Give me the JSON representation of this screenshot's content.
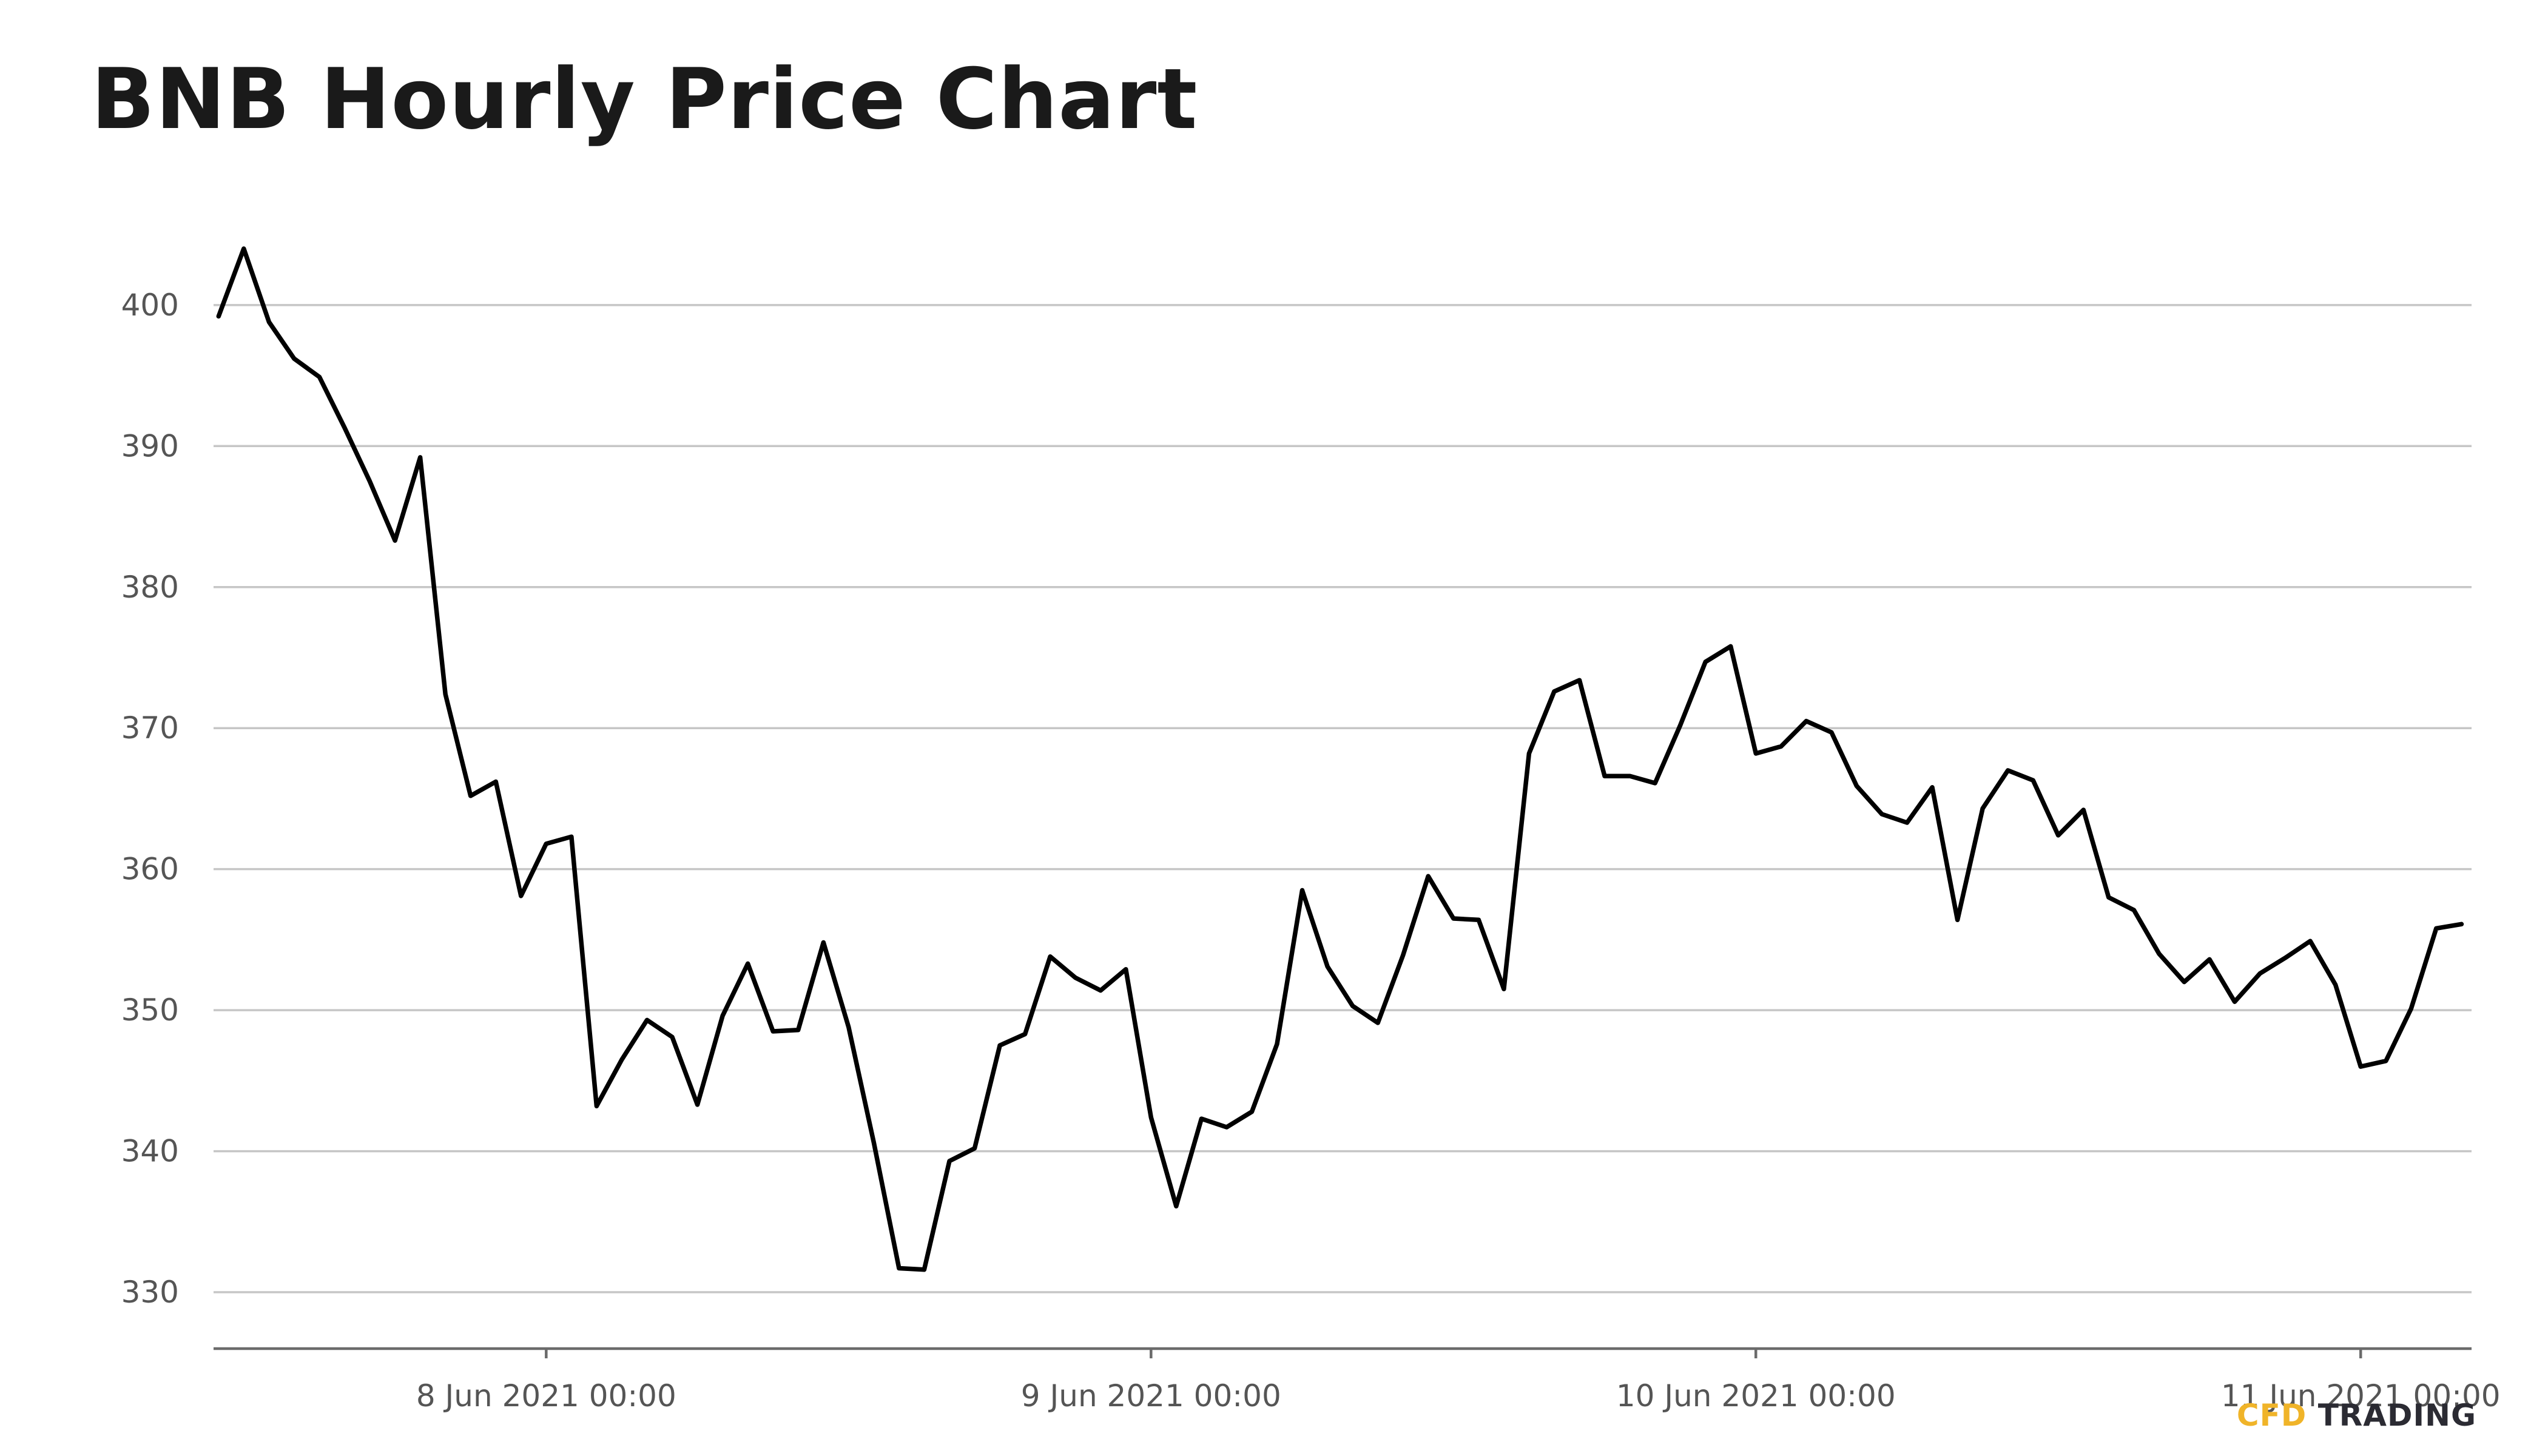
{
  "chart_data": {
    "type": "line",
    "title": "BNB Hourly Price Chart",
    "xlabel": "",
    "ylabel": "",
    "ylim": [
      326,
      405.5
    ],
    "yticks": [
      330,
      340,
      350,
      360,
      370,
      380,
      390,
      400
    ],
    "grid": "horizontal",
    "x_ticks": [
      {
        "label": "8 Jun 2021 00:00",
        "hours": 0
      },
      {
        "label": "9 Jun 2021 00:00",
        "hours": 24
      },
      {
        "label": "10 Jun 2021 00:00",
        "hours": 48
      },
      {
        "label": "11 Jun 2021 00:00",
        "hours": 72
      }
    ],
    "x_axis_range": {
      "start": "7 Jun 2021 10:48",
      "end": "11 Jun 2021 04:24"
    },
    "x_unit_note": "x values are timestamps (7 Jun 2021 11:00 to 11 Jun 2021 04:00), one point per hour",
    "series": [
      {
        "color": "#000000",
        "x": [
          "7 Jun 2021 11:00",
          "7 Jun 2021 12:00",
          "7 Jun 2021 13:00",
          "7 Jun 2021 14:00",
          "7 Jun 2021 15:00",
          "7 Jun 2021 16:00",
          "7 Jun 2021 17:00",
          "7 Jun 2021 18:00",
          "7 Jun 2021 19:00",
          "7 Jun 2021 20:00",
          "7 Jun 2021 21:00",
          "7 Jun 2021 22:00",
          "7 Jun 2021 23:00",
          "8 Jun 2021 00:00",
          "8 Jun 2021 01:00",
          "8 Jun 2021 02:00",
          "8 Jun 2021 03:00",
          "8 Jun 2021 04:00",
          "8 Jun 2021 05:00",
          "8 Jun 2021 06:00",
          "8 Jun 2021 07:00",
          "8 Jun 2021 08:00",
          "8 Jun 2021 09:00",
          "8 Jun 2021 10:00",
          "8 Jun 2021 11:00",
          "8 Jun 2021 12:00",
          "8 Jun 2021 13:00",
          "8 Jun 2021 14:00",
          "8 Jun 2021 15:00",
          "8 Jun 2021 16:00",
          "8 Jun 2021 17:00",
          "8 Jun 2021 18:00",
          "8 Jun 2021 19:00",
          "8 Jun 2021 20:00",
          "8 Jun 2021 21:00",
          "8 Jun 2021 22:00",
          "8 Jun 2021 23:00",
          "9 Jun 2021 00:00",
          "9 Jun 2021 01:00",
          "9 Jun 2021 02:00",
          "9 Jun 2021 03:00",
          "9 Jun 2021 04:00",
          "9 Jun 2021 05:00",
          "9 Jun 2021 06:00",
          "9 Jun 2021 07:00",
          "9 Jun 2021 08:00",
          "9 Jun 2021 09:00",
          "9 Jun 2021 10:00",
          "9 Jun 2021 11:00",
          "9 Jun 2021 12:00",
          "9 Jun 2021 13:00",
          "9 Jun 2021 14:00",
          "9 Jun 2021 15:00",
          "9 Jun 2021 16:00",
          "9 Jun 2021 17:00",
          "9 Jun 2021 18:00",
          "9 Jun 2021 19:00",
          "9 Jun 2021 20:00",
          "9 Jun 2021 21:00",
          "9 Jun 2021 22:00",
          "9 Jun 2021 23:00",
          "10 Jun 2021 00:00",
          "10 Jun 2021 01:00",
          "10 Jun 2021 02:00",
          "10 Jun 2021 03:00",
          "10 Jun 2021 04:00",
          "10 Jun 2021 05:00",
          "10 Jun 2021 06:00",
          "10 Jun 2021 07:00",
          "10 Jun 2021 08:00",
          "10 Jun 2021 09:00",
          "10 Jun 2021 10:00",
          "10 Jun 2021 11:00",
          "10 Jun 2021 12:00",
          "10 Jun 2021 13:00",
          "10 Jun 2021 14:00",
          "10 Jun 2021 15:00",
          "10 Jun 2021 16:00",
          "10 Jun 2021 17:00",
          "10 Jun 2021 18:00",
          "10 Jun 2021 19:00",
          "10 Jun 2021 20:00",
          "10 Jun 2021 21:00",
          "10 Jun 2021 22:00",
          "10 Jun 2021 23:00",
          "11 Jun 2021 00:00",
          "11 Jun 2021 01:00",
          "11 Jun 2021 02:00",
          "11 Jun 2021 03:00",
          "11 Jun 2021 04:00"
        ],
        "y": [
          399.2,
          404.0,
          398.8,
          396.2,
          394.9,
          391.3,
          387.5,
          383.3,
          389.2,
          372.4,
          365.2,
          366.2,
          358.1,
          361.8,
          362.3,
          343.2,
          346.5,
          349.3,
          348.1,
          343.3,
          349.6,
          353.3,
          348.5,
          348.6,
          354.8,
          348.8,
          340.6,
          331.7,
          331.6,
          339.3,
          340.2,
          347.5,
          348.3,
          353.8,
          352.3,
          351.4,
          352.9,
          342.4,
          336.1,
          342.3,
          341.7,
          342.8,
          347.6,
          358.5,
          353.1,
          350.3,
          349.1,
          353.9,
          359.5,
          356.5,
          356.4,
          351.5,
          368.2,
          372.6,
          373.4,
          366.6,
          366.6,
          366.1,
          370.2,
          374.7,
          375.8,
          368.2,
          368.7,
          370.5,
          369.7,
          365.9,
          363.9,
          363.3,
          365.8,
          356.4,
          364.3,
          367.0,
          366.3,
          362.4,
          364.2,
          358.0,
          357.1,
          354.0,
          352.0,
          353.6,
          350.6,
          352.6,
          353.7,
          354.9,
          351.8,
          346.0,
          346.4,
          350.1,
          355.8,
          356.1
        ]
      }
    ]
  },
  "watermark": {
    "part1": "CFD",
    "part2": "TRADING"
  }
}
